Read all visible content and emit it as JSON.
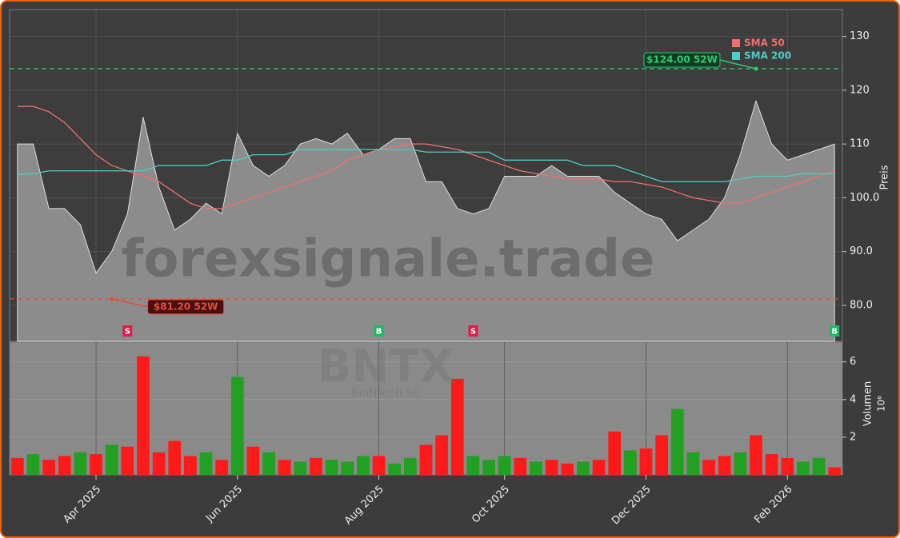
{
  "chart_data": [
    {
      "type": "area",
      "title": "BNTX",
      "subtitle": "BioNTech SE",
      "watermark": "forexsignale.trade",
      "y_label": "Preis",
      "categories": [
        null,
        null,
        null,
        null,
        null,
        "Apr 2025",
        null,
        null,
        null,
        null,
        null,
        null,
        null,
        null,
        "Jun 2025",
        null,
        null,
        null,
        null,
        null,
        null,
        null,
        null,
        "Aug 2025",
        null,
        null,
        null,
        null,
        null,
        null,
        null,
        "Oct 2025",
        null,
        null,
        null,
        null,
        null,
        null,
        null,
        null,
        "Dec 2025",
        null,
        null,
        null,
        null,
        null,
        null,
        null,
        null,
        "Feb 2026",
        null,
        null,
        null
      ],
      "values": [
        110,
        110,
        98,
        98,
        95,
        86,
        90,
        97,
        115,
        102,
        94,
        96,
        99,
        97,
        112,
        106,
        104,
        106,
        110,
        111,
        110,
        112,
        108,
        109,
        111,
        111,
        103,
        103,
        98,
        97,
        98,
        104,
        104,
        104,
        106,
        104,
        104,
        104,
        101,
        99,
        97,
        96,
        92,
        94,
        96,
        100,
        108,
        118,
        110,
        107,
        108,
        109,
        110
      ],
      "color": "#8c8c8c",
      "series": [
        {
          "name": "SMA 50",
          "color": "#f07070",
          "values": [
            117,
            117,
            116,
            114,
            111,
            108,
            106,
            105,
            104,
            103,
            101,
            99,
            98,
            98,
            99,
            100,
            101,
            102,
            103,
            104,
            105,
            107,
            108,
            109,
            109.5,
            110,
            110,
            109.5,
            109,
            108,
            107,
            106,
            105,
            104.5,
            104,
            103.5,
            103.5,
            103.5,
            103,
            103,
            102.5,
            102,
            101,
            100,
            99.5,
            99,
            99,
            100,
            101,
            102,
            103,
            104,
            105
          ]
        },
        {
          "name": "SMA 200",
          "color": "#4ecdc4",
          "values": [
            104.3,
            104.5,
            105,
            105,
            105,
            105,
            105,
            105,
            105,
            106,
            106,
            106,
            106,
            107,
            107,
            108,
            108,
            108,
            109,
            109,
            109,
            109,
            109,
            109,
            109,
            109,
            108.5,
            108.5,
            108.5,
            108.5,
            108.5,
            107,
            107,
            107,
            107,
            107,
            106,
            106,
            106,
            105,
            104,
            103,
            103,
            103,
            103,
            103,
            103.5,
            104,
            104,
            104,
            104.5,
            104.5,
            104.5
          ]
        }
      ],
      "annotations": [
        {
          "text": "$124.00 52W",
          "value": 124,
          "index": 47,
          "color": "#2ecc71"
        },
        {
          "text": "$81.20 52W",
          "value": 81.2,
          "index": 6,
          "color": "#e74c3c"
        }
      ],
      "signals": [
        {
          "label": "S",
          "index": 7,
          "color": "#e8194a"
        },
        {
          "label": "B",
          "index": 23,
          "color": "#1abc60"
        },
        {
          "label": "S",
          "index": 29,
          "color": "#e8194a"
        },
        {
          "label": "B",
          "index": 52,
          "color": "#1abc60"
        }
      ],
      "ylim": [
        73.3,
        135
      ],
      "yticks": [
        {
          "value": 80,
          "label": "80.0"
        },
        {
          "value": 90,
          "label": "90.0"
        },
        {
          "value": 100,
          "label": "100.0"
        },
        110,
        120,
        130
      ],
      "grid": true
    },
    {
      "type": "bar",
      "y_label": "Volumen",
      "scale_label": "10⁶",
      "values": [
        0.9,
        1.1,
        0.8,
        1.0,
        1.2,
        1.1,
        1.6,
        1.5,
        6.3,
        1.2,
        1.8,
        1.0,
        1.2,
        0.8,
        5.2,
        1.5,
        1.2,
        0.8,
        0.7,
        0.9,
        0.8,
        0.7,
        1.0,
        1.0,
        0.6,
        0.9,
        1.6,
        2.1,
        5.1,
        1.0,
        0.8,
        1.0,
        0.9,
        0.7,
        0.8,
        0.6,
        0.7,
        0.8,
        2.3,
        1.3,
        1.4,
        2.1,
        3.5,
        1.2,
        0.8,
        1.0,
        1.2,
        2.1,
        1.1,
        0.9,
        0.7,
        0.9,
        0.4
      ],
      "colors": [
        "#ff1a1a",
        "#22a022",
        "#ff1a1a",
        "#ff1a1a",
        "#22a022",
        "#ff1a1a",
        "#22a022",
        "#ff1a1a",
        "#ff1a1a",
        "#ff1a1a",
        "#ff1a1a",
        "#ff1a1a",
        "#22a022",
        "#ff1a1a",
        "#22a022",
        "#ff1a1a",
        "#22a022",
        "#ff1a1a",
        "#22a022",
        "#ff1a1a",
        "#22a022",
        "#22a022",
        "#22a022",
        "#ff1a1a",
        "#22a022",
        "#22a022",
        "#ff1a1a",
        "#ff1a1a",
        "#ff1a1a",
        "#22a022",
        "#22a022",
        "#22a022",
        "#ff1a1a",
        "#22a022",
        "#ff1a1a",
        "#ff1a1a",
        "#22a022",
        "#ff1a1a",
        "#ff1a1a",
        "#22a022",
        "#ff1a1a",
        "#ff1a1a",
        "#22a022",
        "#22a022",
        "#ff1a1a",
        "#ff1a1a",
        "#22a022",
        "#ff1a1a",
        "#ff1a1a",
        "#ff1a1a",
        "#22a022",
        "#22a022",
        "#ff1a1a"
      ],
      "ylim": [
        0,
        7.05
      ],
      "yticks": [
        2,
        4,
        6
      ],
      "grid": true
    }
  ]
}
